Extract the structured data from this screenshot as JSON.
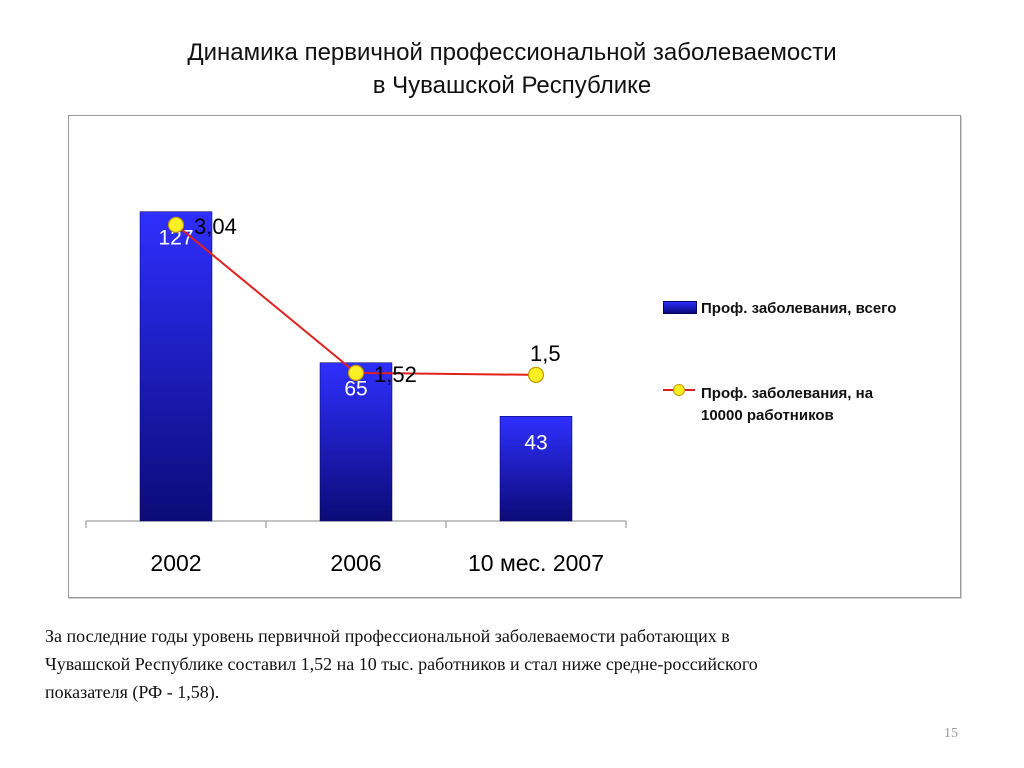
{
  "title": {
    "line1": "Динамика первичной профессиональной заболеваемости",
    "line2": "в Чувашской Республике"
  },
  "chart_data": {
    "type": "bar",
    "categories": [
      "2002",
      "2006",
      "10 мес. 2007"
    ],
    "series": [
      {
        "name": "Проф. заболевания, всего",
        "kind": "bar",
        "values": [
          127,
          65,
          43
        ],
        "labels": [
          "127",
          "65",
          "43"
        ],
        "color": "#1e1ee6"
      },
      {
        "name": "Проф. заболевания, на 10000 работников",
        "kind": "line",
        "values": [
          3.04,
          1.52,
          1.5
        ],
        "labels": [
          "3,04",
          "1,52",
          "1,5"
        ],
        "color": "#e0201c",
        "marker_color": "#ffef22"
      }
    ],
    "ylim_bar": [
      0,
      140
    ],
    "ylim_line": [
      0,
      3.5
    ],
    "grid": false,
    "legend_position": "right"
  },
  "legend": {
    "bar_label": "Проф. заболевания, всего",
    "line_label_1": "Проф. заболевания, на",
    "line_label_2": "10000 работников"
  },
  "footnote": {
    "line1": "За последние годы уровень первичной профессиональной заболеваемости работающих в",
    "line2": "Чувашской Республике составил 1,52 на 10 тыс. работников и стал ниже средне-российского",
    "line3": "показателя (РФ - 1,58)."
  },
  "page_number": "15"
}
